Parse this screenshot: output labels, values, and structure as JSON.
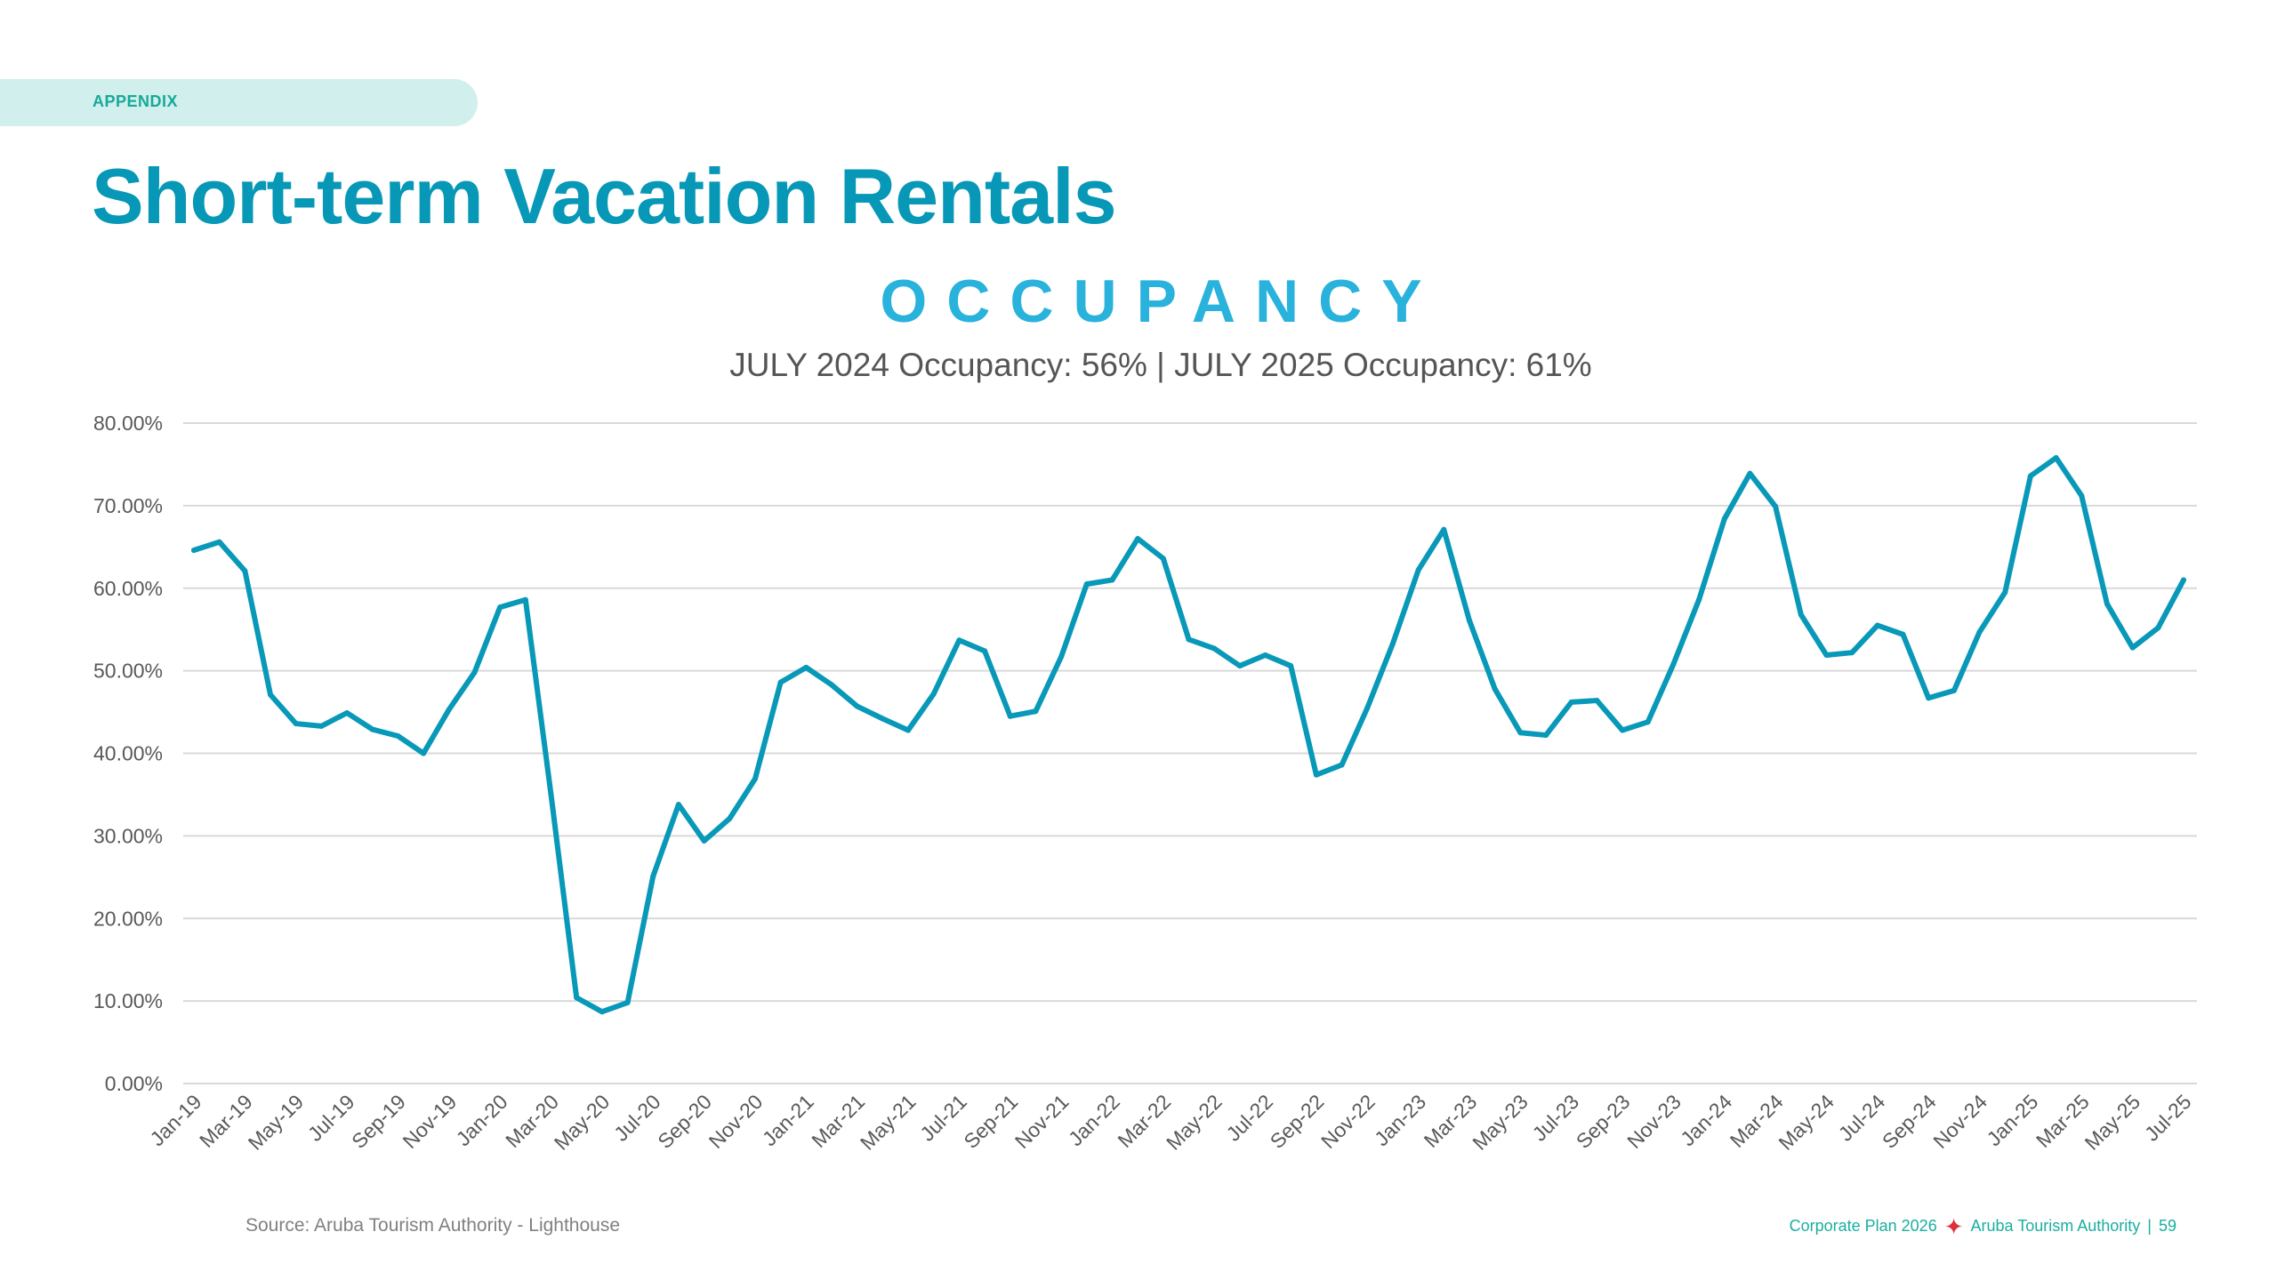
{
  "section_tag": "APPENDIX",
  "page_title": "Short-term Vacation Rentals",
  "chart_data": {
    "type": "line",
    "title": "OCCUPANCY",
    "subtitle": "JULY 2024 Occupancy: 56% | JULY 2025 Occupancy: 61%",
    "ylim": [
      0,
      80
    ],
    "y_ticks": [
      "0.00%",
      "10.00%",
      "20.00%",
      "30.00%",
      "40.00%",
      "50.00%",
      "60.00%",
      "70.00%",
      "80.00%"
    ],
    "grid": true,
    "line_color": "#0898b8",
    "x": [
      "Jan-19",
      "Feb-19",
      "Mar-19",
      "Apr-19",
      "May-19",
      "Jun-19",
      "Jul-19",
      "Aug-19",
      "Sep-19",
      "Oct-19",
      "Nov-19",
      "Dec-19",
      "Jan-20",
      "Feb-20",
      "Mar-20",
      "Apr-20",
      "May-20",
      "Jun-20",
      "Jul-20",
      "Aug-20",
      "Sep-20",
      "Oct-20",
      "Nov-20",
      "Dec-20",
      "Jan-21",
      "Feb-21",
      "Mar-21",
      "Apr-21",
      "May-21",
      "Jun-21",
      "Jul-21",
      "Aug-21",
      "Sep-21",
      "Oct-21",
      "Nov-21",
      "Dec-21",
      "Jan-22",
      "Feb-22",
      "Mar-22",
      "Apr-22",
      "May-22",
      "Jun-22",
      "Jul-22",
      "Aug-22",
      "Sep-22",
      "Oct-22",
      "Nov-22",
      "Dec-22",
      "Jan-23",
      "Feb-23",
      "Mar-23",
      "Apr-23",
      "May-23",
      "Jun-23",
      "Jul-23",
      "Aug-23",
      "Sep-23",
      "Oct-23",
      "Nov-23",
      "Dec-23",
      "Jan-24",
      "Feb-24",
      "Mar-24",
      "Apr-24",
      "May-24",
      "Jun-24",
      "Jul-24",
      "Aug-24",
      "Sep-24",
      "Oct-24",
      "Nov-24",
      "Dec-24",
      "Jan-25",
      "Feb-25",
      "Mar-25",
      "Apr-25",
      "May-25",
      "Jun-25",
      "Jul-25"
    ],
    "values": [
      64.6,
      65.6,
      62.1,
      47.1,
      43.6,
      43.3,
      44.9,
      42.9,
      42.1,
      40.0,
      45.3,
      49.8,
      57.7,
      58.6,
      35.0,
      10.4,
      8.7,
      9.8,
      25.1,
      33.8,
      29.4,
      32.1,
      36.9,
      48.6,
      50.4,
      48.3,
      45.7,
      44.2,
      42.8,
      47.2,
      53.7,
      52.4,
      44.5,
      45.1,
      51.7,
      60.5,
      61.0,
      66.0,
      63.6,
      53.8,
      52.7,
      50.6,
      51.9,
      50.6,
      37.4,
      38.6,
      45.5,
      53.3,
      62.2,
      67.1,
      56.1,
      47.8,
      42.5,
      42.2,
      46.2,
      46.4,
      42.8,
      43.8,
      50.8,
      58.6,
      68.4,
      73.9,
      69.9,
      56.8,
      51.9,
      52.2,
      55.5,
      54.4,
      46.7,
      47.6,
      54.7,
      59.5,
      73.6,
      75.8,
      71.2,
      58.1,
      52.8,
      55.2,
      61.0
    ],
    "unit": "%"
  },
  "source": "Source: Aruba Tourism Authority - Lighthouse",
  "footer": {
    "plan": "Corporate Plan 2026",
    "org": "Aruba Tourism Authority",
    "separator": "|",
    "page_number": "59",
    "star_color": "#e0303a"
  }
}
